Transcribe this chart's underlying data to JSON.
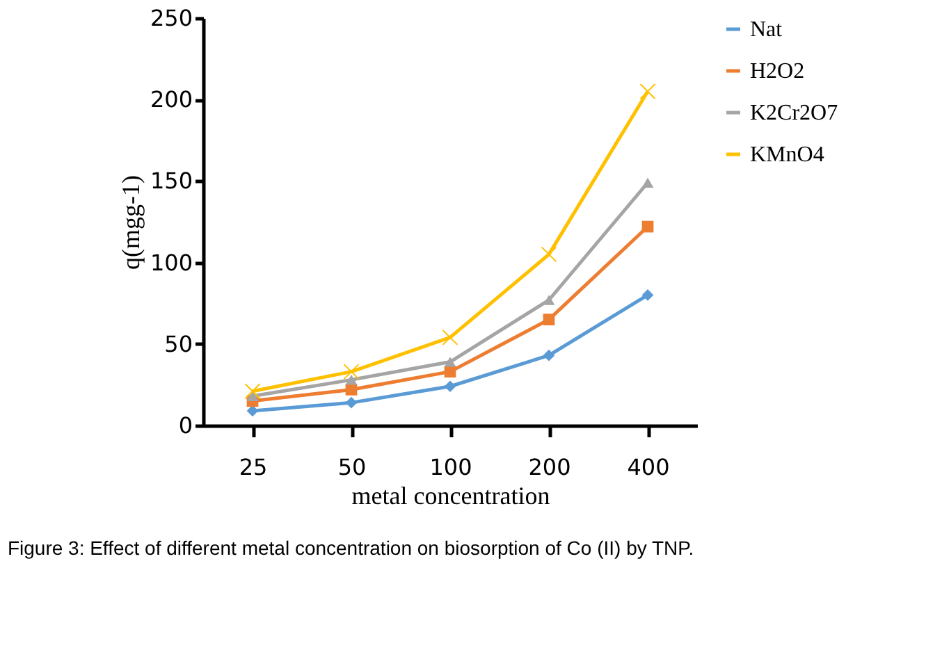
{
  "chart_data": {
    "type": "line",
    "xlabel": "metal concentration",
    "ylabel": "q(mgg-1)",
    "categories": [
      "25",
      "50",
      "100",
      "200",
      "400"
    ],
    "series": [
      {
        "name": "Nat",
        "color": "#5b9bd5",
        "marker": "diamond",
        "values": [
          9,
          14,
          24,
          43,
          80
        ]
      },
      {
        "name": "H2O2",
        "color": "#ed7d31",
        "marker": "square",
        "values": [
          15,
          22,
          33,
          65,
          122
        ]
      },
      {
        "name": "K2Cr2O7",
        "color": "#a5a5a5",
        "marker": "triangle",
        "values": [
          18,
          28,
          39,
          77,
          149
        ]
      },
      {
        "name": "KMnO4",
        "color": "#ffc000",
        "marker": "cross",
        "values": [
          21,
          33,
          54,
          105,
          205
        ]
      }
    ],
    "ylim": [
      0,
      250
    ],
    "yticks": [
      0,
      50,
      100,
      150,
      200,
      250
    ],
    "grid": false,
    "legend": "right",
    "annotations": [
      "Figure 3: Effect of different metal concentration on biosorption of Co (II) by TNP."
    ]
  }
}
